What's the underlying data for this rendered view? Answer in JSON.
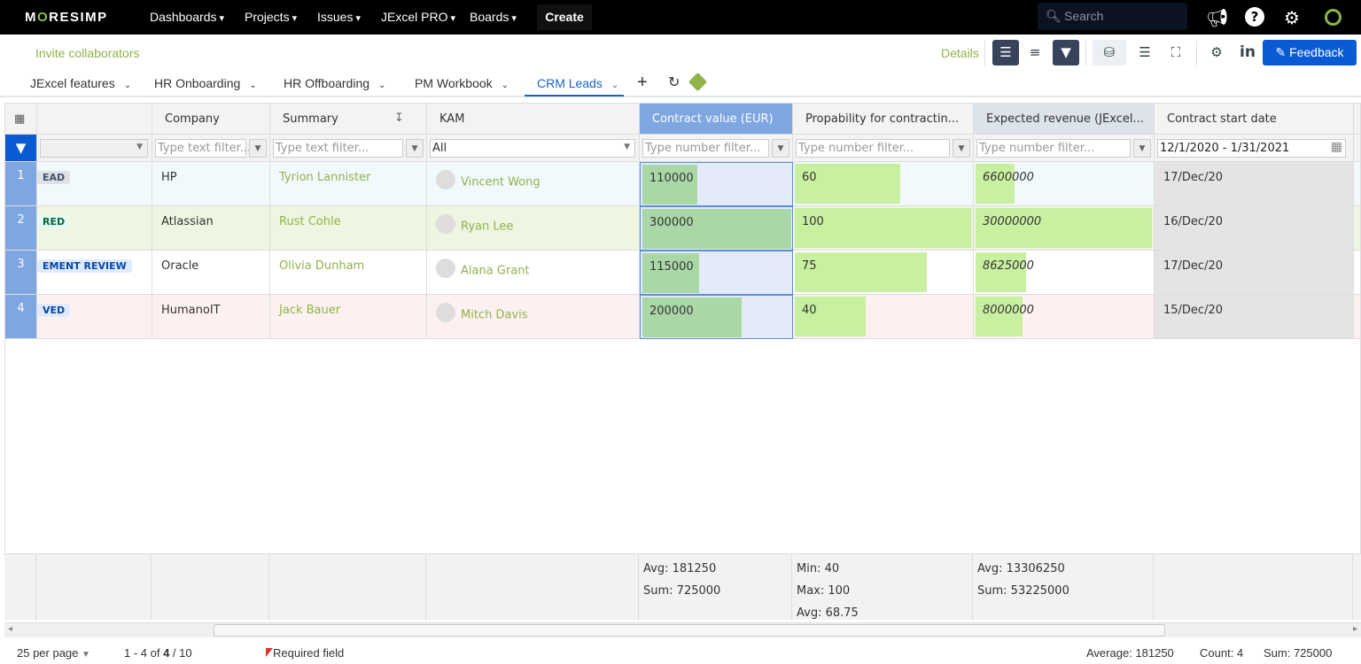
{
  "nav": {
    "logo": "MORESIMP",
    "items": [
      "Dashboards",
      "Projects",
      "Issues",
      "JExcel PRO",
      "Boards"
    ],
    "create": "Create",
    "search_placeholder": "Search"
  },
  "sub": {
    "invite": "Invite collaborators",
    "details": "Details",
    "feedback": "Feedback"
  },
  "tabs": [
    {
      "label": "JExcel features"
    },
    {
      "label": "HR Onboarding"
    },
    {
      "label": "HR Offboarding"
    },
    {
      "label": "PM Workbook"
    },
    {
      "label": "CRM Leads",
      "active": true
    }
  ],
  "grid": {
    "columns": [
      "",
      "Company",
      "Summary",
      "KAM",
      "Contract value (EUR)",
      "Propability for contractin...",
      "Expected revenue (JExcel...",
      "Contract start date"
    ],
    "filters": [
      "",
      "Type text filter...",
      "Type text filter...",
      "All",
      "Type number filter...",
      "Type number filter...",
      "Type number filter...",
      "12/1/2020 - 1/31/2021"
    ],
    "rows": [
      {
        "num": "1",
        "status": "EAD",
        "status_color": "#42526e",
        "status_bg": "#dfe1e6",
        "company": "HP",
        "summary": "Tyrion Lannister",
        "kam": "Vincent Wong",
        "contract_value": 110000,
        "probability": 60,
        "expected_revenue": 6600000,
        "start_date": "17/Dec/20",
        "bg": "#f1f9fc"
      },
      {
        "num": "2",
        "status": "RED",
        "status_color": "#006644",
        "status_bg": "#e3fcef",
        "company": "Atlassian",
        "summary": "Rust Cohle",
        "kam": "Ryan Lee",
        "contract_value": 300000,
        "probability": 100,
        "expected_revenue": 30000000,
        "start_date": "16/Dec/20",
        "bg": "#eef5e1"
      },
      {
        "num": "3",
        "status": "EMENT REVIEW",
        "status_color": "#0747a6",
        "status_bg": "#deebff",
        "company": "Oracle",
        "summary": "Olivia Dunham",
        "kam": "Alana Grant",
        "contract_value": 115000,
        "probability": 75,
        "expected_revenue": 8625000,
        "start_date": "17/Dec/20",
        "bg": "#ffffff"
      },
      {
        "num": "4",
        "status": "VED",
        "status_color": "#0747a6",
        "status_bg": "#deebff",
        "company": "HumanoIT",
        "summary": "Jack Bauer",
        "kam": "Mitch Davis",
        "contract_value": 200000,
        "probability": 40,
        "expected_revenue": 8000000,
        "start_date": "15/Dec/20",
        "bg": "#fcf1f0"
      }
    ],
    "footer": {
      "contract_value": [
        "Avg: 181250",
        "Sum: 725000"
      ],
      "probability": [
        "Min: 40",
        "Max: 100",
        "Avg: 68.75"
      ],
      "expected_revenue": [
        "Avg: 13306250",
        "Sum: 53225000"
      ]
    }
  },
  "colors": {
    "contract_bar": "#a9d8a6",
    "probability_bar": "#c8f0a0",
    "revenue_bar": "#c8f0a0",
    "selected_bg": "#e3ebf8",
    "selected_border": "#5b8fd8"
  },
  "statusbar": {
    "per_page": "25 per page",
    "range": "1 - 4 of ",
    "range_bold": "4",
    "range_total": " / 10",
    "required": "Required field",
    "average": "Average: 181250",
    "count": "Count: 4",
    "sum": "Sum: 725000"
  }
}
